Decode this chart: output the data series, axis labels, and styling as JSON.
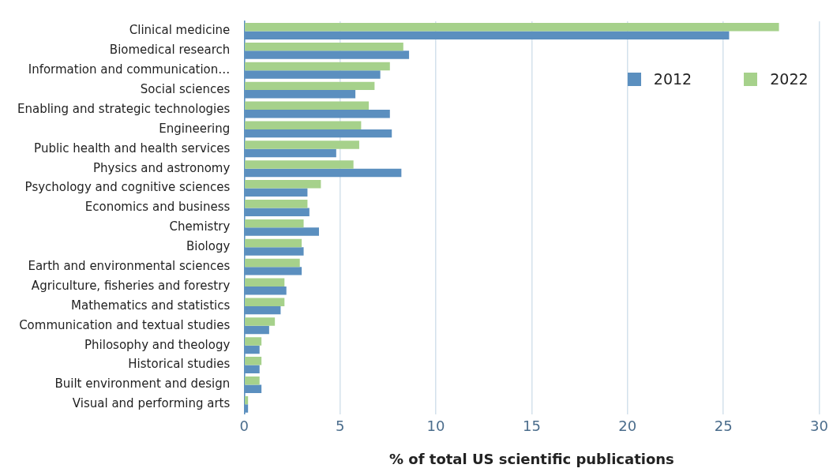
{
  "chart_data": {
    "type": "bar",
    "orientation": "horizontal",
    "xlabel": "% of total US scientific publications",
    "categories": [
      "Clinical medicine",
      "Biomedical research",
      "Information and communication…",
      "Social sciences",
      "Enabling and strategic technologies",
      "Engineering",
      "Public health and health services",
      "Physics and astronomy",
      "Psychology and cognitive sciences",
      "Economics and business",
      "Chemistry",
      "Biology",
      "Earth and environmental sciences",
      "Agriculture, fisheries and forestry",
      "Mathematics and statistics",
      "Communication and textual studies",
      "Philosophy and theology",
      "Historical studies",
      "Built environment and design",
      "Visual and performing arts"
    ],
    "series": [
      {
        "name": "2012",
        "color": "#5b8fbf",
        "values": [
          25.3,
          8.6,
          7.1,
          5.8,
          7.6,
          7.7,
          4.8,
          8.2,
          3.3,
          3.4,
          3.9,
          3.1,
          3.0,
          2.2,
          1.9,
          1.3,
          0.8,
          0.8,
          0.9,
          0.2
        ]
      },
      {
        "name": "2022",
        "color": "#a6d18b",
        "values": [
          27.9,
          8.3,
          7.6,
          6.8,
          6.5,
          6.1,
          6.0,
          5.7,
          4.0,
          3.3,
          3.1,
          3.0,
          2.9,
          2.1,
          2.1,
          1.6,
          0.9,
          0.9,
          0.8,
          0.2
        ]
      }
    ],
    "xlim": [
      0,
      30
    ],
    "xticks": [
      0,
      5,
      10,
      15,
      20,
      25,
      30
    ],
    "grid": "x",
    "legend": "top right"
  }
}
